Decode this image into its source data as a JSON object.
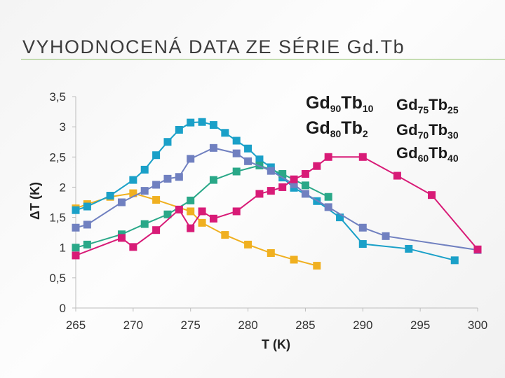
{
  "slide": {
    "title": "VYHODNOCENÁ DATA ZE SÉRIE Gd.Tb"
  },
  "chart_data": {
    "type": "line",
    "xlabel": "T (K)",
    "ylabel": "ΔT (K)",
    "xlim": [
      265,
      300
    ],
    "ylim": [
      0,
      3.5
    ],
    "x_ticks": [
      265,
      270,
      275,
      280,
      285,
      290,
      295,
      300
    ],
    "x_tick_labels": [
      "265",
      "270",
      "275",
      "280",
      "285",
      "290",
      "295",
      "300"
    ],
    "y_ticks": [
      0,
      0.5,
      1,
      1.5,
      2,
      2.5,
      3,
      3.5
    ],
    "y_tick_labels": [
      "0",
      "0,5",
      "1",
      "1,5",
      "2",
      "2,5",
      "3",
      "3,5"
    ],
    "grid": false,
    "legend_position": "top-right",
    "series": [
      {
        "name": "Gd90Tb10",
        "base": "Gd",
        "sub1": "90",
        "mid": "Tb",
        "sub2": "10",
        "color": "#f0b020",
        "points": [
          [
            265,
            1.65
          ],
          [
            266,
            1.72
          ],
          [
            268,
            1.84
          ],
          [
            270,
            1.9
          ],
          [
            272,
            1.79
          ],
          [
            275,
            1.6
          ],
          [
            276,
            1.41
          ],
          [
            278,
            1.21
          ],
          [
            280,
            1.05
          ],
          [
            282,
            0.91
          ],
          [
            284,
            0.8
          ],
          [
            286,
            0.7
          ]
        ]
      },
      {
        "name": "Gd75Tb25",
        "base": "Gd",
        "sub1": "75",
        "mid": "Tb",
        "sub2": "25",
        "color": "#1aa0c8",
        "points": [
          [
            265,
            1.62
          ],
          [
            266,
            1.68
          ],
          [
            268,
            1.86
          ],
          [
            270,
            2.12
          ],
          [
            271,
            2.29
          ],
          [
            272,
            2.53
          ],
          [
            273,
            2.75
          ],
          [
            274,
            2.95
          ],
          [
            275,
            3.07
          ],
          [
            276,
            3.08
          ],
          [
            277,
            3.03
          ],
          [
            278,
            2.9
          ],
          [
            279,
            2.77
          ],
          [
            280,
            2.64
          ],
          [
            281,
            2.46
          ],
          [
            282,
            2.33
          ],
          [
            283,
            2.16
          ],
          [
            284,
            1.99
          ],
          [
            286,
            1.77
          ],
          [
            288,
            1.5
          ],
          [
            290,
            1.06
          ],
          [
            294,
            0.98
          ],
          [
            298,
            0.79
          ]
        ]
      },
      {
        "name": "Gd80Tb2",
        "base": "Gd",
        "sub1": "80",
        "mid": "Tb",
        "sub2": "2",
        "color": "#2aa888",
        "points": [
          [
            265,
            1.0
          ],
          [
            266,
            1.05
          ],
          [
            269,
            1.22
          ],
          [
            271,
            1.39
          ],
          [
            273,
            1.55
          ],
          [
            275,
            1.78
          ],
          [
            277,
            2.12
          ],
          [
            279,
            2.26
          ],
          [
            281,
            2.36
          ],
          [
            283,
            2.22
          ],
          [
            285,
            2.03
          ],
          [
            287,
            1.84
          ]
        ]
      },
      {
        "name": "Gd70Tb30",
        "base": "Gd",
        "sub1": "70",
        "mid": "Tb",
        "sub2": "30",
        "color": "#7080c0",
        "points": [
          [
            265,
            1.33
          ],
          [
            266,
            1.38
          ],
          [
            269,
            1.75
          ],
          [
            271,
            1.94
          ],
          [
            272,
            2.04
          ],
          [
            273,
            2.14
          ],
          [
            274,
            2.17
          ],
          [
            275,
            2.47
          ],
          [
            277,
            2.65
          ],
          [
            279,
            2.56
          ],
          [
            280,
            2.43
          ],
          [
            282,
            2.27
          ],
          [
            284,
            2.05
          ],
          [
            285,
            1.89
          ],
          [
            287,
            1.67
          ],
          [
            290,
            1.33
          ],
          [
            292,
            1.19
          ],
          [
            300,
            0.96
          ]
        ]
      },
      {
        "name": "Gd60Tb40",
        "base": "Gd",
        "sub1": "60",
        "mid": "Tb",
        "sub2": "40",
        "color": "#d81b77",
        "points": [
          [
            265,
            0.87
          ],
          [
            269,
            1.16
          ],
          [
            270,
            1.01
          ],
          [
            272,
            1.29
          ],
          [
            274,
            1.63
          ],
          [
            275,
            1.32
          ],
          [
            276,
            1.6
          ],
          [
            277,
            1.48
          ],
          [
            279,
            1.6
          ],
          [
            281,
            1.89
          ],
          [
            282,
            1.94
          ],
          [
            283,
            2.0
          ],
          [
            284,
            2.13
          ],
          [
            285,
            2.22
          ],
          [
            286,
            2.35
          ],
          [
            287,
            2.5
          ],
          [
            290,
            2.5
          ],
          [
            293,
            2.19
          ],
          [
            296,
            1.87
          ],
          [
            300,
            0.97
          ]
        ]
      }
    ]
  }
}
